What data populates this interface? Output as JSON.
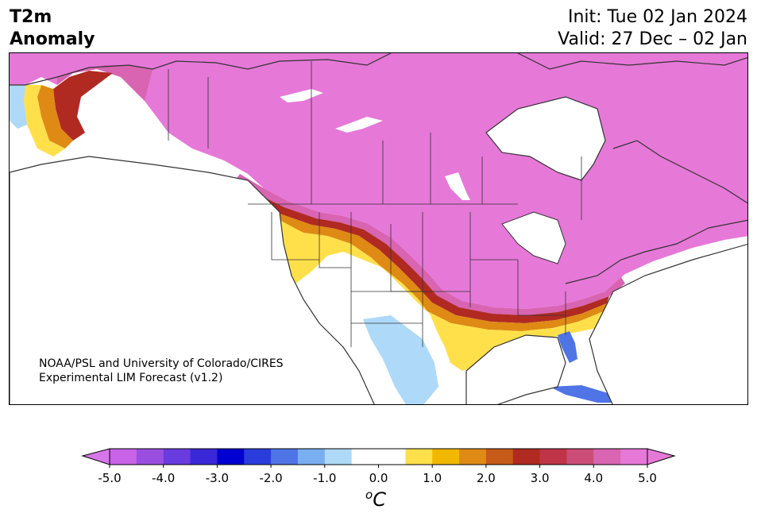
{
  "header": {
    "title_line1": "T2m",
    "title_line2": "Anomaly",
    "init_line": "Init: Tue 02 Jan 2024",
    "valid_line": "Valid: 27 Dec – 02 Jan"
  },
  "credit": {
    "line1": "NOAA/PSL and University of Colorado/CIRES",
    "line2": "Experimental LIM Forecast (v1.2)"
  },
  "colorbar": {
    "units_main": "C",
    "units_sup": "o",
    "tick_labels": [
      "-5.0",
      "-4.0",
      "-3.0",
      "-2.0",
      "-1.0",
      "0.0",
      "1.0",
      "2.0",
      "3.0",
      "4.0",
      "5.0"
    ],
    "colors": [
      "#c862e6",
      "#9a4ee0",
      "#6a3ce0",
      "#3a28d8",
      "#0000d0",
      "#2a3ddc",
      "#4f74e6",
      "#79aef0",
      "#aed9f8",
      "#ffffff",
      "#ffffff",
      "#ffe04a",
      "#f2b800",
      "#de8a14",
      "#c65a18",
      "#b02a22",
      "#c03448",
      "#cc4e78",
      "#d864b2",
      "#e678d8"
    ],
    "under_color": "#d776e8",
    "over_color": "#e678d8"
  },
  "map": {
    "warm_anomaly_color": "#e678d8",
    "land_color": "#ffffff",
    "coast_color": "#333333"
  }
}
